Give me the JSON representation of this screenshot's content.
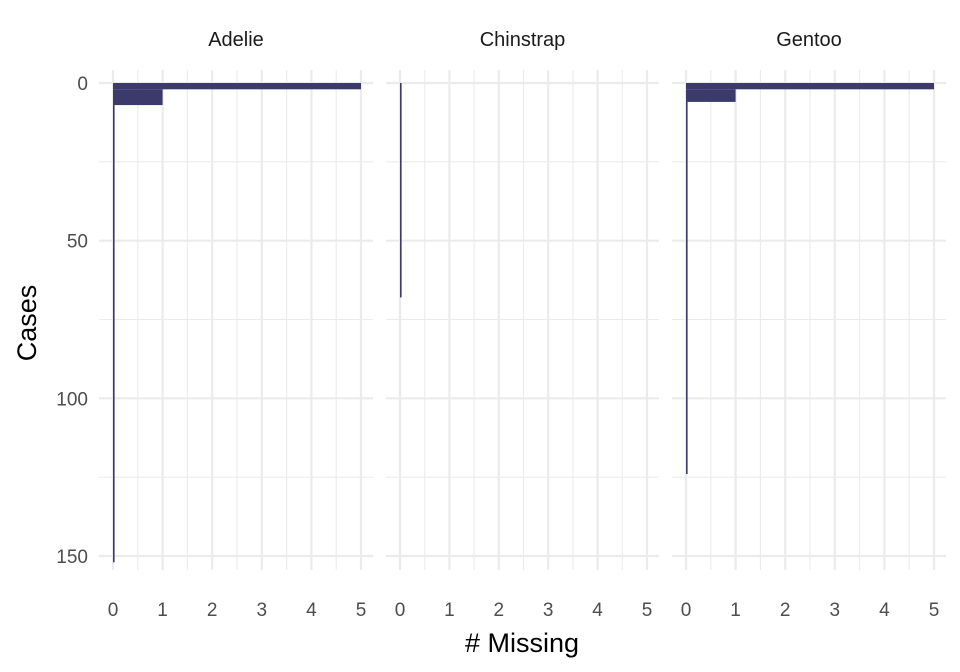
{
  "chart_data": {
    "type": "bar",
    "orientation": "horizontal",
    "xlabel": "# Missing",
    "ylabel": "Cases",
    "xlim": [
      0,
      5
    ],
    "ylim": [
      0,
      152
    ],
    "y_reversed": true,
    "xticks": [
      0,
      1,
      2,
      3,
      4,
      5
    ],
    "yticks": [
      0,
      50,
      100,
      150
    ],
    "grid": true,
    "bar_color": "#3c3a6b",
    "panels": [
      {
        "name": "Adelie",
        "cases": 152,
        "bars": [
          {
            "from_case": 0,
            "to_case": 2,
            "missing": 5
          },
          {
            "from_case": 2,
            "to_case": 7,
            "missing": 1
          },
          {
            "from_case": 7,
            "to_case": 152,
            "missing": 0
          }
        ]
      },
      {
        "name": "Chinstrap",
        "cases": 68,
        "bars": [
          {
            "from_case": 0,
            "to_case": 68,
            "missing": 0
          }
        ]
      },
      {
        "name": "Gentoo",
        "cases": 124,
        "bars": [
          {
            "from_case": 0,
            "to_case": 2,
            "missing": 5
          },
          {
            "from_case": 2,
            "to_case": 6,
            "missing": 1
          },
          {
            "from_case": 6,
            "to_case": 124,
            "missing": 0
          }
        ]
      }
    ]
  }
}
